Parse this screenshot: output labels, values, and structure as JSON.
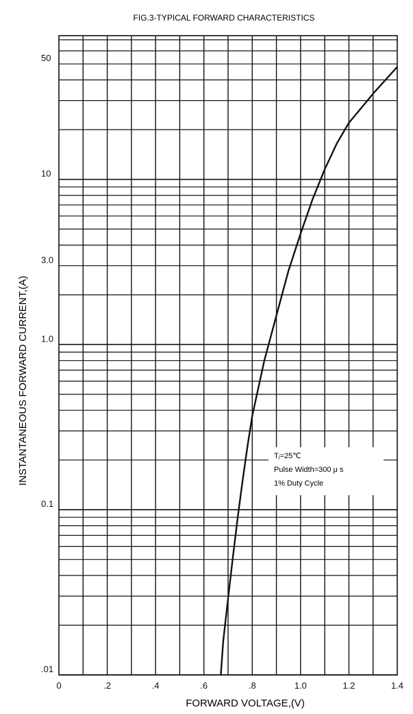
{
  "chart_data": {
    "type": "line",
    "title": "FIG.3-TYPICAL FORWARD CHARACTERISTICS",
    "xlabel": "FORWARD VOLTAGE,(V)",
    "ylabel": "INSTANTANEOUS FORWARD CURRENT,(A)",
    "x_scale": "linear",
    "y_scale": "log",
    "xlim": [
      0,
      1.4
    ],
    "ylim": [
      0.01,
      100
    ],
    "grid": true,
    "x_ticks": [
      {
        "value": 0,
        "label": "0"
      },
      {
        "value": 0.2,
        "label": ".2"
      },
      {
        "value": 0.4,
        "label": ".4"
      },
      {
        "value": 0.6,
        "label": ".6"
      },
      {
        "value": 0.8,
        "label": ".8"
      },
      {
        "value": 1.0,
        "label": "1.0"
      },
      {
        "value": 1.2,
        "label": "1.2"
      },
      {
        "value": 1.4,
        "label": "1.4"
      }
    ],
    "y_ticks": [
      {
        "value": 0.01,
        "label": ".01"
      },
      {
        "value": 0.1,
        "label": "0.1"
      },
      {
        "value": 1,
        "label": "1.0"
      },
      {
        "value": 3,
        "label": "3.0"
      },
      {
        "value": 10,
        "label": "10"
      },
      {
        "value": 50,
        "label": "50"
      }
    ],
    "series": [
      {
        "x": [
          0.67,
          0.68,
          0.7,
          0.72,
          0.74,
          0.76,
          0.78,
          0.8,
          0.85,
          0.9,
          0.95,
          1.0,
          1.05,
          1.1,
          1.15,
          1.2,
          1.3,
          1.4
        ],
        "y": [
          0.01,
          0.016,
          0.029,
          0.052,
          0.09,
          0.15,
          0.24,
          0.37,
          0.8,
          1.5,
          2.8,
          4.7,
          7.6,
          11.5,
          16.5,
          22,
          33,
          48
        ]
      }
    ],
    "annotation": {
      "lines": [
        "Tⱼ=25℃",
        "Pulse Width=300 μ s",
        "1% Duty Cycle"
      ]
    },
    "color": "#111111"
  }
}
